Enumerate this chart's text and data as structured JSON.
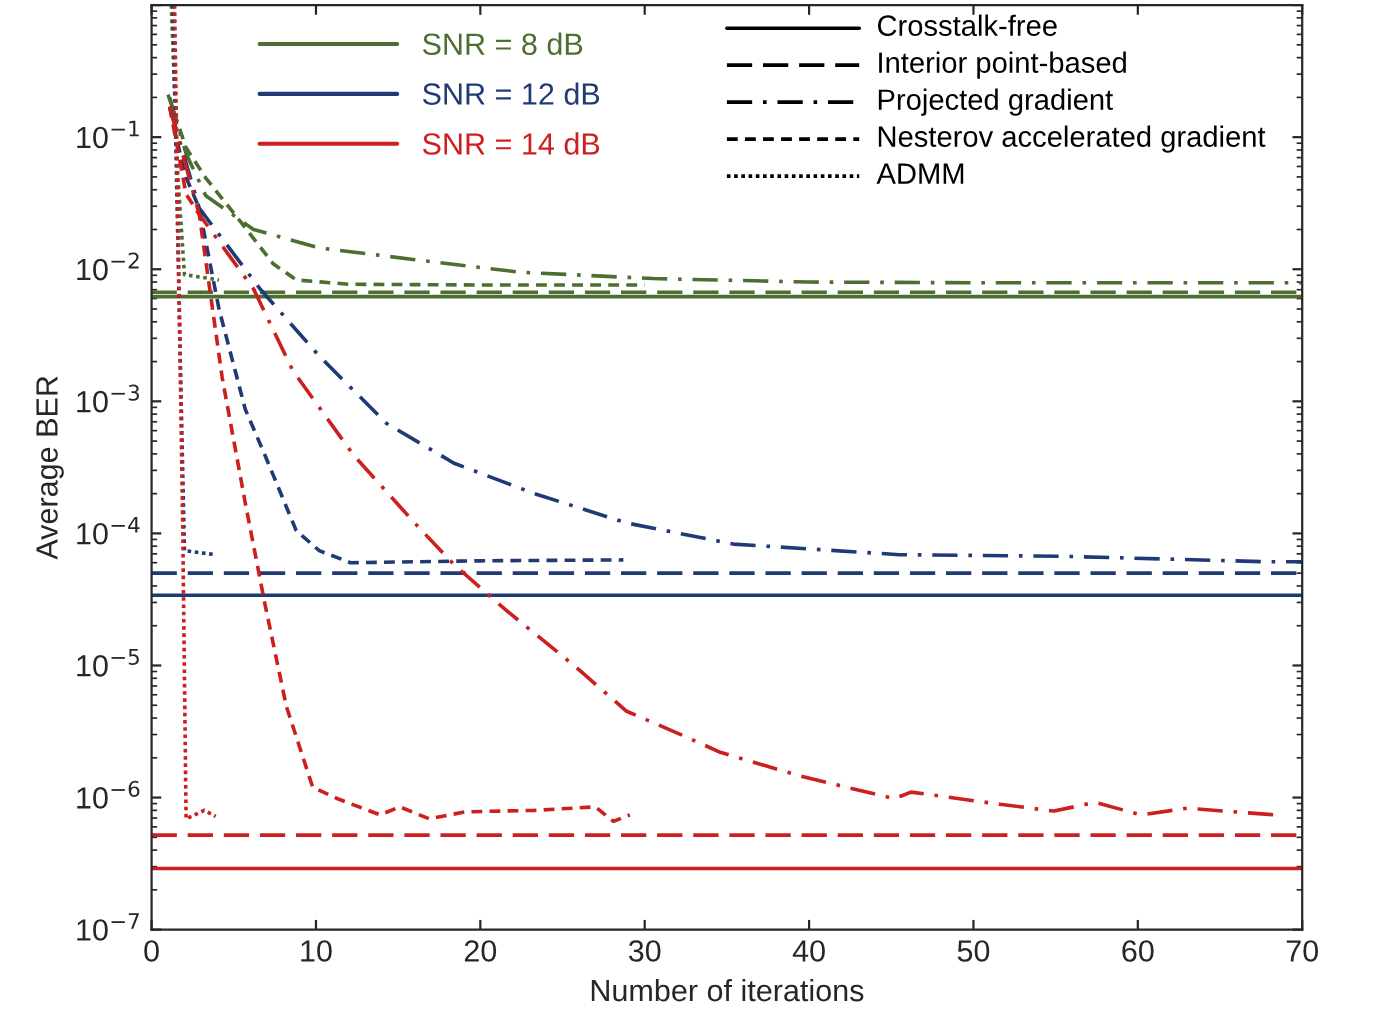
{
  "chart_data": {
    "type": "line",
    "xlabel": "Number of iterations",
    "ylabel": "Average BER",
    "log": "y",
    "grid": false,
    "legend": "top left",
    "xlim": [
      0,
      70
    ],
    "xticks": [
      0,
      10,
      20,
      30,
      40,
      50,
      60,
      70
    ],
    "ylim": [
      1e-07,
      1
    ],
    "yticks": [
      {
        "value": 1e-07,
        "label": "10$^{−7}$"
      },
      {
        "value": 1e-06,
        "label": "10$^{−6}$"
      },
      {
        "value": 1e-05,
        "label": "10$^{−5}$"
      },
      {
        "value": 0.0001,
        "label": "10$^{−4}$"
      },
      {
        "value": 0.001,
        "label": "10$^{−3}$"
      },
      {
        "value": 0.01,
        "label": "10$^{−2}$"
      },
      {
        "value": 0.1,
        "label": "10$^{−1}$"
      },
      {
        "value": 1,
        "label": null
      }
    ],
    "annotations": [
      "Crosstalk-free",
      "Interior point-based",
      "Projected gradient",
      "Nesterov accelerated gradient",
      "ADMM"
    ],
    "series": [
      {
        "name": "SNR = 8 dB",
        "color": "#4b6e31",
        "line_style": "solid",
        "x": [
          0,
          70
        ],
        "values": [
          0.0062,
          0.0062
        ]
      },
      {
        "color": "#4b6e31",
        "line_style": "long_dashed",
        "x": [
          0,
          70
        ],
        "values": [
          0.0067,
          0.0067
        ]
      },
      {
        "color": "#4b6e31",
        "line_style": "dashdot",
        "x": [
          1.1,
          2.1,
          3.3,
          6.2,
          10.2,
          16.3,
          22.4,
          30.5,
          40,
          50,
          60,
          70
        ],
        "values": [
          0.2,
          0.075,
          0.036,
          0.02,
          0.0145,
          0.0117,
          0.0095,
          0.0085,
          0.008,
          0.0079,
          0.0079,
          0.0079
        ]
      },
      {
        "color": "#4b6e31",
        "line_style": "dashed",
        "x": [
          1.0,
          2.1,
          3.3,
          5.4,
          7.4,
          8.8,
          12,
          20,
          30
        ],
        "values": [
          0.21,
          0.083,
          0.049,
          0.023,
          0.011,
          0.0083,
          0.0077,
          0.0076,
          0.0076
        ]
      },
      {
        "color": "#4b6e31",
        "line_style": "dotted",
        "x": [
          1.2,
          1.6,
          2.0,
          4.1
        ],
        "values": [
          1,
          0.05,
          0.0091,
          0.0083
        ]
      },
      {
        "name": "SNR = 12 dB",
        "color": "#1f3a75",
        "line_style": "solid",
        "x": [
          0,
          70
        ],
        "values": [
          3.4e-05,
          3.4e-05
        ]
      },
      {
        "color": "#1f3a75",
        "line_style": "long_dashed",
        "x": [
          0,
          70
        ],
        "values": [
          5e-05,
          5e-05
        ]
      },
      {
        "color": "#1f3a75",
        "line_style": "dashdot",
        "x": [
          1.1,
          2.9,
          6.6,
          10.2,
          14.3,
          18.4,
          23.3,
          28.9,
          35.4,
          45.5,
          55.7,
          67.8,
          70
        ],
        "values": [
          0.17,
          0.029,
          0.0071,
          0.0022,
          0.00068,
          0.00034,
          0.0002,
          0.00012,
          8.3e-05,
          6.9e-05,
          6.7e-05,
          6.1e-05,
          6.1e-05
        ]
      },
      {
        "color": "#1f3a75",
        "line_style": "dashed",
        "x": [
          1.1,
          2.0,
          2.9,
          4.1,
          5.7,
          6.9,
          8.8,
          10.2,
          12.1,
          20,
          28.7
        ],
        "values": [
          0.17,
          0.053,
          0.029,
          0.005,
          0.00087,
          0.00039,
          0.000105,
          7.4e-05,
          6e-05,
          6.2e-05,
          6.3e-05
        ]
      },
      {
        "color": "#1f3a75",
        "line_style": "dotted",
        "x": [
          1.3,
          1.8,
          2.0,
          3.9
        ],
        "values": [
          1,
          0.001,
          7.4e-05,
          6.9e-05
        ]
      },
      {
        "name": "SNR = 14 dB",
        "color": "#cc1f1f",
        "line_style": "solid",
        "x": [
          0,
          70
        ],
        "values": [
          2.9e-07,
          2.9e-07
        ]
      },
      {
        "color": "#cc1f1f",
        "line_style": "long_dashed",
        "x": [
          0,
          70
        ],
        "values": [
          5.2e-07,
          5.2e-07
        ]
      },
      {
        "color": "#cc1f1f",
        "line_style": "dashdot",
        "x": [
          1.1,
          2.9,
          6.2,
          8.6,
          12.3,
          16.0,
          18.4,
          21.6,
          25.7,
          28.9,
          32.2,
          34.6,
          39.5,
          45.2,
          46.2,
          51.6,
          54.9,
          57.4,
          60.2,
          63.0,
          68.3
        ],
        "values": [
          0.17,
          0.026,
          0.0071,
          0.0017,
          0.00039,
          0.00012,
          5.8e-05,
          2.6e-05,
          1e-05,
          4.5e-06,
          3e-06,
          2.2e-06,
          1.45e-06,
          9.8e-07,
          1.1e-06,
          8.9e-07,
          7.9e-07,
          9.2e-07,
          7.4e-07,
          8.3e-07,
          7.4e-07
        ]
      },
      {
        "color": "#cc1f1f",
        "line_style": "dashed",
        "x": [
          1.1,
          2.1,
          2.9,
          4.3,
          5.7,
          6.9,
          8.2,
          9.8,
          11.4,
          13.9,
          15.1,
          16.9,
          19.1,
          23.3,
          27.0,
          28.1,
          29.1
        ],
        "values": [
          0.17,
          0.037,
          0.026,
          0.0015,
          0.00017,
          2.9e-05,
          4.9e-06,
          1.2e-06,
          9.7e-07,
          7.4e-07,
          8.5e-07,
          6.9e-07,
          7.8e-07,
          8e-07,
          8.5e-07,
          6.6e-07,
          7.4e-07
        ]
      },
      {
        "color": "#cc1f1f",
        "line_style": "dotted",
        "x": [
          1.4,
          1.9,
          2.1,
          3.2,
          3.9
        ],
        "values": [
          1,
          0.0001,
          6.9e-07,
          8e-07,
          7.2e-07
        ]
      }
    ]
  }
}
